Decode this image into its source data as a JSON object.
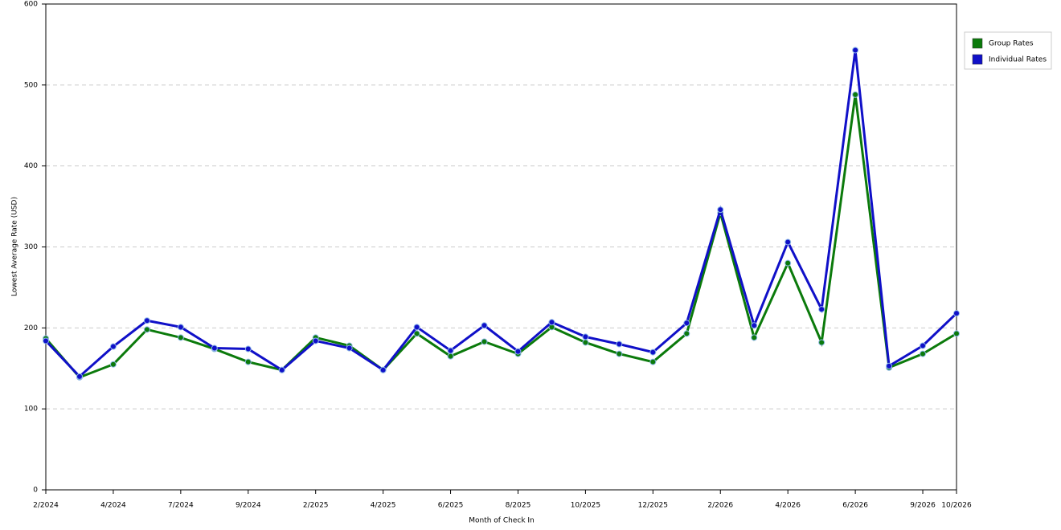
{
  "chart_data": {
    "type": "line",
    "x_label": "Month of Check In",
    "y_label": "Lowest Average Rate (USD)",
    "categories": [
      "2/2024",
      null,
      "4/2024",
      null,
      "7/2024",
      null,
      "9/2024",
      null,
      "2/2025",
      null,
      "4/2025",
      null,
      "6/2025",
      null,
      "8/2025",
      null,
      "10/2025",
      null,
      "12/2025",
      null,
      "2/2026",
      null,
      "4/2026",
      null,
      "6/2026",
      null,
      "9/2026",
      "10/2026"
    ],
    "series": [
      {
        "name": "Group Rates",
        "color": "#0b7a0b",
        "values": [
          187,
          139,
          155,
          198,
          188,
          174,
          158,
          148,
          188,
          178,
          148,
          193,
          165,
          183,
          168,
          201,
          182,
          168,
          158,
          193,
          342,
          188,
          280,
          182,
          488,
          151,
          168,
          193
        ]
      },
      {
        "name": "Individual Rates",
        "color": "#1010c8",
        "values": [
          184,
          140,
          177,
          209,
          201,
          175,
          174,
          148,
          184,
          175,
          148,
          201,
          172,
          203,
          171,
          207,
          189,
          180,
          170,
          206,
          346,
          203,
          306,
          223,
          543,
          153,
          178,
          218
        ]
      }
    ],
    "ylim": [
      0,
      600
    ],
    "yticks": [
      0,
      100,
      200,
      300,
      400,
      500,
      600
    ],
    "grid": true,
    "legend": "right"
  }
}
